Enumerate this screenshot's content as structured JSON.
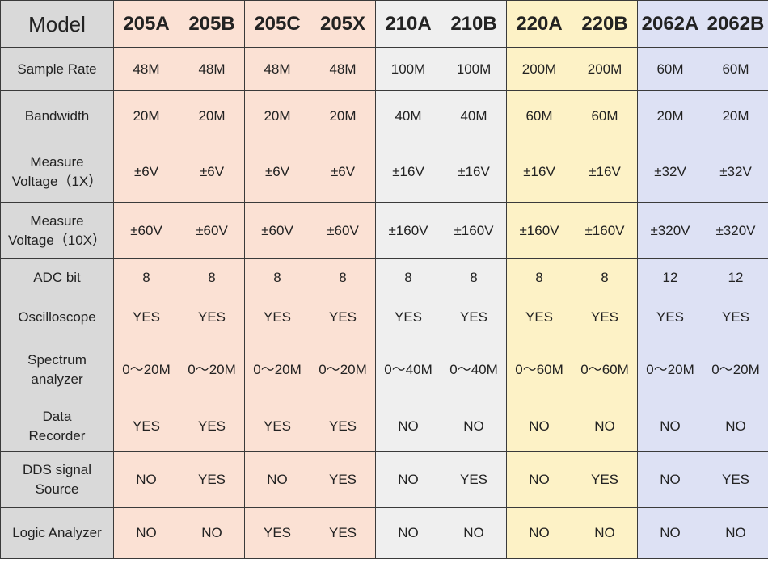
{
  "header_label": "Model",
  "models": [
    {
      "name": "205A",
      "group": "g205"
    },
    {
      "name": "205B",
      "group": "g205"
    },
    {
      "name": "205C",
      "group": "g205"
    },
    {
      "name": "205X",
      "group": "g205"
    },
    {
      "name": "210A",
      "group": "g210"
    },
    {
      "name": "210B",
      "group": "g210"
    },
    {
      "name": "220A",
      "group": "g220"
    },
    {
      "name": "220B",
      "group": "g220"
    },
    {
      "name": "2062A",
      "group": "g2062"
    },
    {
      "name": "2062B",
      "group": "g2062"
    }
  ],
  "group_colors": {
    "g205": "#fbe1d4",
    "g210": "#efefef",
    "g220": "#fdf2c6",
    "g2062": "#dde1f4",
    "label": "#d9d9d9"
  },
  "rows": [
    {
      "label": "Sample Rate",
      "values": [
        "48M",
        "48M",
        "48M",
        "48M",
        "100M",
        "100M",
        "200M",
        "200M",
        "60M",
        "60M"
      ]
    },
    {
      "label": "Bandwidth",
      "values": [
        "20M",
        "20M",
        "20M",
        "20M",
        "40M",
        "40M",
        "60M",
        "60M",
        "20M",
        "20M"
      ]
    },
    {
      "label": "Measure\nVoltage（1X）",
      "values": [
        "±6V",
        "±6V",
        "±6V",
        "±6V",
        "±16V",
        "±16V",
        "±16V",
        "±16V",
        "±32V",
        "±32V"
      ]
    },
    {
      "label": "Measure\nVoltage（10X）",
      "values": [
        "±60V",
        "±60V",
        "±60V",
        "±60V",
        "±160V",
        "±160V",
        "±160V",
        "±160V",
        "±320V",
        "±320V"
      ]
    },
    {
      "label": "ADC bit",
      "values": [
        "8",
        "8",
        "8",
        "8",
        "8",
        "8",
        "8",
        "8",
        "12",
        "12"
      ]
    },
    {
      "label": "Oscilloscope",
      "values": [
        "YES",
        "YES",
        "YES",
        "YES",
        "YES",
        "YES",
        "YES",
        "YES",
        "YES",
        "YES"
      ]
    },
    {
      "label": "Spectrum\nanalyzer",
      "values": [
        "0～20M",
        "0～20M",
        "0～20M",
        "0～20M",
        "0～40M",
        "0～40M",
        "0～60M",
        "0～60M",
        "0～20M",
        "0～20M"
      ]
    },
    {
      "label": "Data\nRecorder",
      "values": [
        "YES",
        "YES",
        "YES",
        "YES",
        "NO",
        "NO",
        "NO",
        "NO",
        "NO",
        "NO"
      ]
    },
    {
      "label": "DDS signal\nSource",
      "values": [
        "NO",
        "YES",
        "NO",
        "YES",
        "NO",
        "YES",
        "NO",
        "YES",
        "NO",
        "YES"
      ]
    },
    {
      "label": "Logic Analyzer",
      "values": [
        "NO",
        "NO",
        "YES",
        "YES",
        "NO",
        "NO",
        "NO",
        "NO",
        "NO",
        "NO"
      ]
    }
  ]
}
